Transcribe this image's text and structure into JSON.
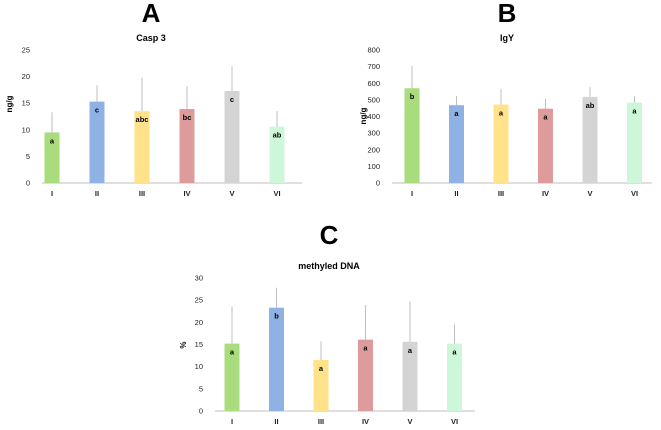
{
  "chart_data": [
    {
      "panel": "A",
      "type": "bar",
      "title": "Casp 3",
      "ylabel": "ng/g",
      "xlabel": "",
      "categories": [
        "I",
        "II",
        "III",
        "IV",
        "V",
        "VI"
      ],
      "values": [
        9.5,
        15.3,
        13.5,
        13.9,
        17.3,
        10.6
      ],
      "errors": [
        3.8,
        3.1,
        6.3,
        4.3,
        4.6,
        2.9
      ],
      "letters": [
        "a",
        "c",
        "abc",
        "bc",
        "c",
        "ab"
      ],
      "colors": [
        "#a8dc7c",
        "#8fb1e3",
        "#ffe28a",
        "#dd9b9b",
        "#d4d4d4",
        "#ccf7d8"
      ],
      "ylim": [
        0,
        25
      ],
      "yticks": [
        0,
        5,
        10,
        15,
        20,
        25
      ]
    },
    {
      "panel": "B",
      "type": "bar",
      "title": "IgY",
      "ylabel": "ng/g",
      "xlabel": "",
      "categories": [
        "I",
        "II",
        "III",
        "IV",
        "V",
        "VI"
      ],
      "values": [
        570,
        468,
        472,
        447,
        518,
        483
      ],
      "errors": [
        135,
        55,
        95,
        60,
        58,
        40
      ],
      "letters": [
        "b",
        "a",
        "a",
        "a",
        "ab",
        "a"
      ],
      "colors": [
        "#a8dc7c",
        "#8fb1e3",
        "#ffe28a",
        "#dd9b9b",
        "#d4d4d4",
        "#ccf7d8"
      ],
      "ylim": [
        0,
        800
      ],
      "yticks": [
        0,
        100,
        200,
        300,
        400,
        500,
        600,
        700,
        800
      ]
    },
    {
      "panel": "C",
      "type": "bar",
      "title": "methyled DNA",
      "ylabel": "%",
      "xlabel": "",
      "categories": [
        "I",
        "II",
        "III",
        "IV",
        "V",
        "VI"
      ],
      "values": [
        15.2,
        23.3,
        11.5,
        16.1,
        15.6,
        15.2
      ],
      "errors": [
        8.3,
        4.5,
        4.2,
        7.8,
        9.1,
        4.3
      ],
      "letters": [
        "a",
        "b",
        "a",
        "a",
        "a",
        "a"
      ],
      "colors": [
        "#a8dc7c",
        "#8fb1e3",
        "#ffe28a",
        "#dd9b9b",
        "#d4d4d4",
        "#ccf7d8"
      ],
      "ylim": [
        0,
        30
      ],
      "yticks": [
        0,
        5,
        10,
        15,
        20,
        25,
        30
      ]
    }
  ]
}
